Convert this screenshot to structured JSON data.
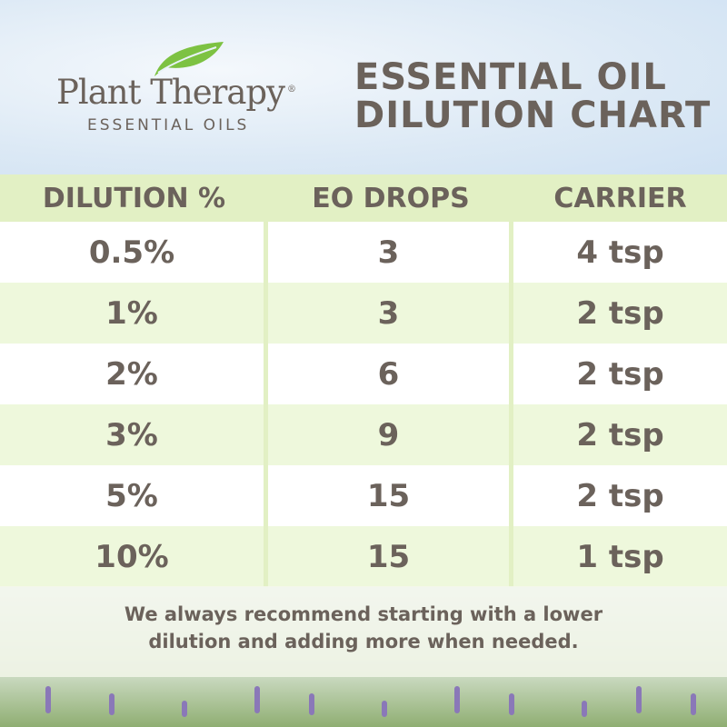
{
  "logo": {
    "brand": "Plant Therapy",
    "registered": "®",
    "tagline": "ESSENTIAL OILS"
  },
  "title": {
    "line1": "ESSENTIAL OIL",
    "line2": "DILUTION CHART"
  },
  "table": {
    "headers": [
      "DILUTION %",
      "EO DROPS",
      "CARRIER"
    ],
    "rows": [
      [
        "0.5%",
        "3",
        "4 tsp"
      ],
      [
        "1%",
        "3",
        "2 tsp"
      ],
      [
        "2%",
        "6",
        "2 tsp"
      ],
      [
        "3%",
        "9",
        "2 tsp"
      ],
      [
        "5%",
        "15",
        "2 tsp"
      ],
      [
        "10%",
        "15",
        "1 tsp"
      ]
    ]
  },
  "footer": {
    "line1": "We always recommend starting with a lower",
    "line2": "dilution and adding more when needed."
  },
  "colors": {
    "text": "#6b625b",
    "header_band": "#e2f0c4",
    "alt_row": "#eef8dc",
    "leaf": "#7dc242"
  }
}
